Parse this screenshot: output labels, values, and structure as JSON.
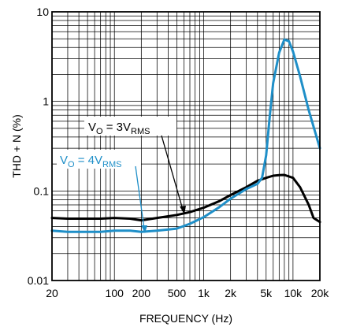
{
  "chart_data": {
    "type": "line",
    "xlabel": "FREQUENCY (Hz)",
    "ylabel": "THD + N (%)",
    "x_scale": "log",
    "y_scale": "log",
    "xlim": [
      20,
      20000
    ],
    "ylim": [
      0.01,
      10
    ],
    "grid": true,
    "x_ticks": [
      {
        "value": 20,
        "label": "20"
      },
      {
        "value": 100,
        "label": "100"
      },
      {
        "value": 200,
        "label": "200"
      },
      {
        "value": 500,
        "label": "500"
      },
      {
        "value": 1000,
        "label": "1k"
      },
      {
        "value": 2000,
        "label": "2k"
      },
      {
        "value": 5000,
        "label": "5k"
      },
      {
        "value": 10000,
        "label": "10k"
      },
      {
        "value": 20000,
        "label": "20k"
      }
    ],
    "y_ticks": [
      {
        "value": 0.01,
        "label": "0.01"
      },
      {
        "value": 0.1,
        "label": "0.1"
      },
      {
        "value": 1,
        "label": "1"
      },
      {
        "value": 10,
        "label": "10"
      }
    ],
    "series": [
      {
        "name_main": "V",
        "name_sub1": "O",
        "name_mid": " = 3V",
        "name_sub2": "RMS",
        "color": "#000000",
        "x": [
          20,
          30,
          50,
          70,
          100,
          150,
          200,
          300,
          500,
          700,
          1000,
          1500,
          2000,
          3000,
          4000,
          5000,
          6000,
          7000,
          8000,
          10000,
          12000,
          15000,
          17000,
          20000
        ],
        "y": [
          0.05,
          0.049,
          0.049,
          0.049,
          0.05,
          0.049,
          0.047,
          0.05,
          0.054,
          0.058,
          0.065,
          0.077,
          0.09,
          0.11,
          0.13,
          0.14,
          0.148,
          0.15,
          0.151,
          0.14,
          0.11,
          0.07,
          0.05,
          0.045
        ]
      },
      {
        "name_main": "V",
        "name_sub1": "O",
        "name_mid": " = 4V",
        "name_sub2": "RMS",
        "color": "#1f8fc8",
        "x": [
          20,
          30,
          50,
          70,
          100,
          150,
          200,
          300,
          500,
          700,
          1000,
          1500,
          2000,
          3000,
          4000,
          4500,
          5000,
          5500,
          6000,
          7000,
          8000,
          9000,
          10000,
          12000,
          15000,
          20000
        ],
        "y": [
          0.036,
          0.035,
          0.035,
          0.035,
          0.036,
          0.036,
          0.035,
          0.036,
          0.038,
          0.043,
          0.051,
          0.066,
          0.082,
          0.105,
          0.12,
          0.14,
          0.25,
          0.7,
          1.6,
          3.5,
          4.9,
          4.7,
          3.6,
          1.9,
          0.8,
          0.3
        ]
      }
    ]
  }
}
